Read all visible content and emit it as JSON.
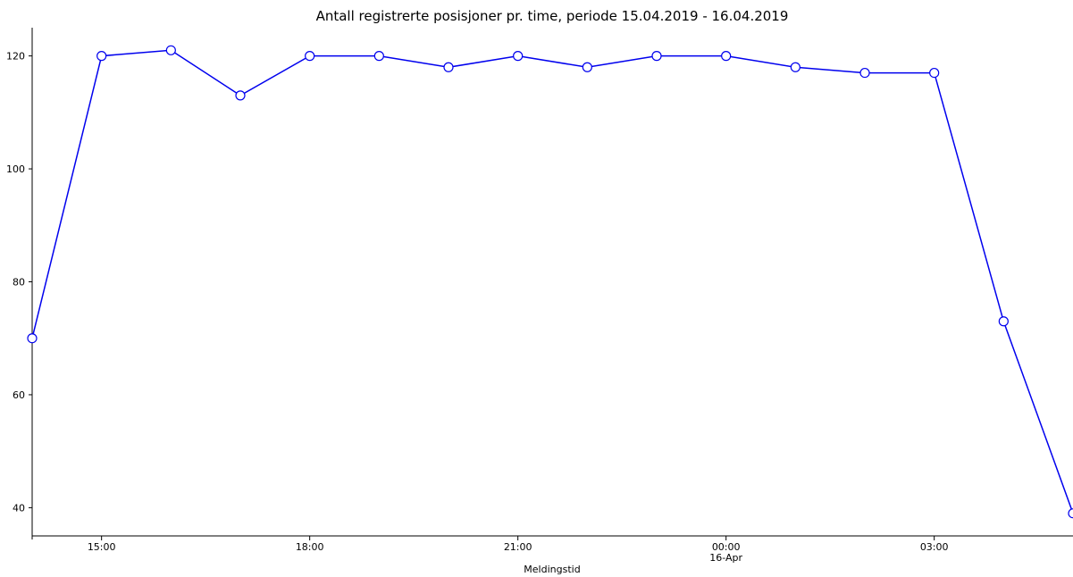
{
  "chart_data": {
    "type": "line",
    "title": "Antall registrerte posisjoner pr. time, periode 15.04.2019 - 16.04.2019",
    "xlabel": "Meldingstid",
    "ylabel": "",
    "x": [
      "2019-04-15 14:00",
      "2019-04-15 15:00",
      "2019-04-15 16:00",
      "2019-04-15 17:00",
      "2019-04-15 18:00",
      "2019-04-15 19:00",
      "2019-04-15 20:00",
      "2019-04-15 21:00",
      "2019-04-15 22:00",
      "2019-04-15 23:00",
      "2019-04-16 00:00",
      "2019-04-16 01:00",
      "2019-04-16 02:00",
      "2019-04-16 03:00",
      "2019-04-16 04:00",
      "2019-04-16 05:00"
    ],
    "values": [
      70,
      120,
      121,
      113,
      120,
      120,
      118,
      120,
      118,
      120,
      120,
      118,
      117,
      117,
      73,
      39
    ],
    "ylim": [
      35,
      125
    ],
    "xlim": [
      "2019-04-15 14:00",
      "2019-04-16 05:00"
    ],
    "yticks": [
      40,
      60,
      80,
      100,
      120
    ],
    "xticks": [
      {
        "x": "2019-04-15 15:00",
        "label": "15:00",
        "sublabel": ""
      },
      {
        "x": "2019-04-15 18:00",
        "label": "18:00",
        "sublabel": ""
      },
      {
        "x": "2019-04-15 21:00",
        "label": "21:00",
        "sublabel": ""
      },
      {
        "x": "2019-04-16 00:00",
        "label": "00:00",
        "sublabel": "16-Apr"
      },
      {
        "x": "2019-04-16 03:00",
        "label": "03:00",
        "sublabel": ""
      }
    ],
    "grid": false,
    "line_color": "#0000ee",
    "marker_fill": "#ffffff"
  }
}
